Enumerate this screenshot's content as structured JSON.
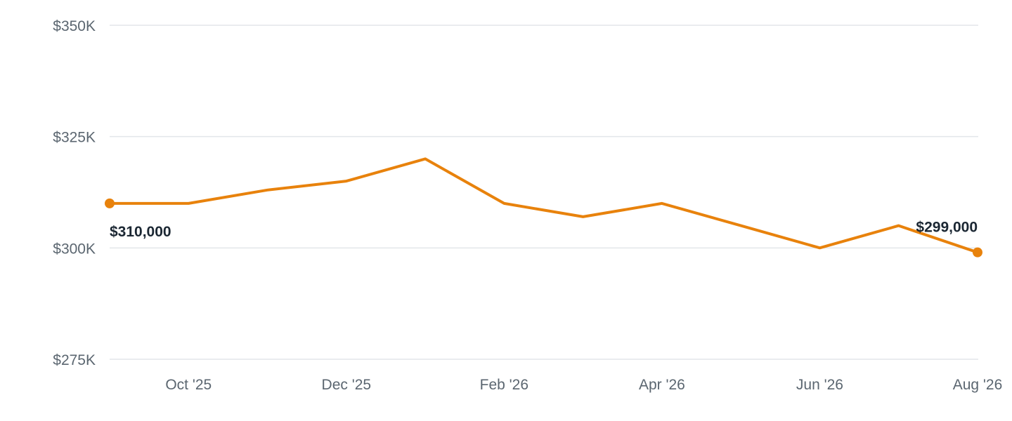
{
  "chart_data": {
    "type": "line",
    "title": "",
    "xlabel": "",
    "ylabel": "",
    "ylim": [
      275000,
      350000
    ],
    "y_ticks": [
      {
        "value": 350000,
        "label": "$350K"
      },
      {
        "value": 325000,
        "label": "$325K"
      },
      {
        "value": 300000,
        "label": "$300K"
      },
      {
        "value": 275000,
        "label": "$275K"
      }
    ],
    "x_ticks": [
      {
        "value": "2025-10",
        "label": "Oct '25"
      },
      {
        "value": "2025-12",
        "label": "Dec '25"
      },
      {
        "value": "2026-02",
        "label": "Feb '26"
      },
      {
        "value": "2026-04",
        "label": "Apr '26"
      },
      {
        "value": "2026-06",
        "label": "Jun '26"
      },
      {
        "value": "2026-08",
        "label": "Aug '26"
      }
    ],
    "x": [
      "2025-09",
      "2025-10",
      "2025-11",
      "2025-12",
      "2026-01",
      "2026-02",
      "2026-03",
      "2026-04",
      "2026-05",
      "2026-06",
      "2026-07",
      "2026-08"
    ],
    "series": [
      {
        "values": [
          310000,
          310000,
          313000,
          315000,
          320000,
          310000,
          307000,
          310000,
          305000,
          300000,
          305000,
          299000
        ],
        "color": "#e8820c"
      }
    ],
    "annotations": [
      {
        "index": 0,
        "label": "$310,000"
      },
      {
        "index": 11,
        "label": "$299,000"
      }
    ],
    "grid": true,
    "legend": "none"
  }
}
